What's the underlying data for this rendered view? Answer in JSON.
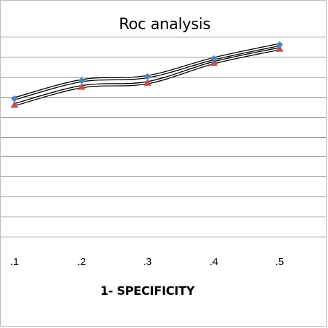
{
  "chart_data": {
    "type": "line",
    "title": "Roc analysis",
    "xlabel": "1- SPECIFICITY",
    "ylabel": "",
    "categories": [
      ".1",
      ".2",
      ".3",
      ".4",
      ".5"
    ],
    "ylim": [
      0,
      1
    ],
    "grid": true,
    "legend": "none",
    "series": [
      {
        "values": [
          0.69,
          0.78,
          0.8,
          0.89,
          0.96
        ],
        "color": "#4f81bd",
        "marker": "diamond"
      },
      {
        "values": [
          0.66,
          0.75,
          0.77,
          0.87,
          0.94
        ],
        "color": "#c0504d",
        "marker": "triangle"
      }
    ]
  }
}
